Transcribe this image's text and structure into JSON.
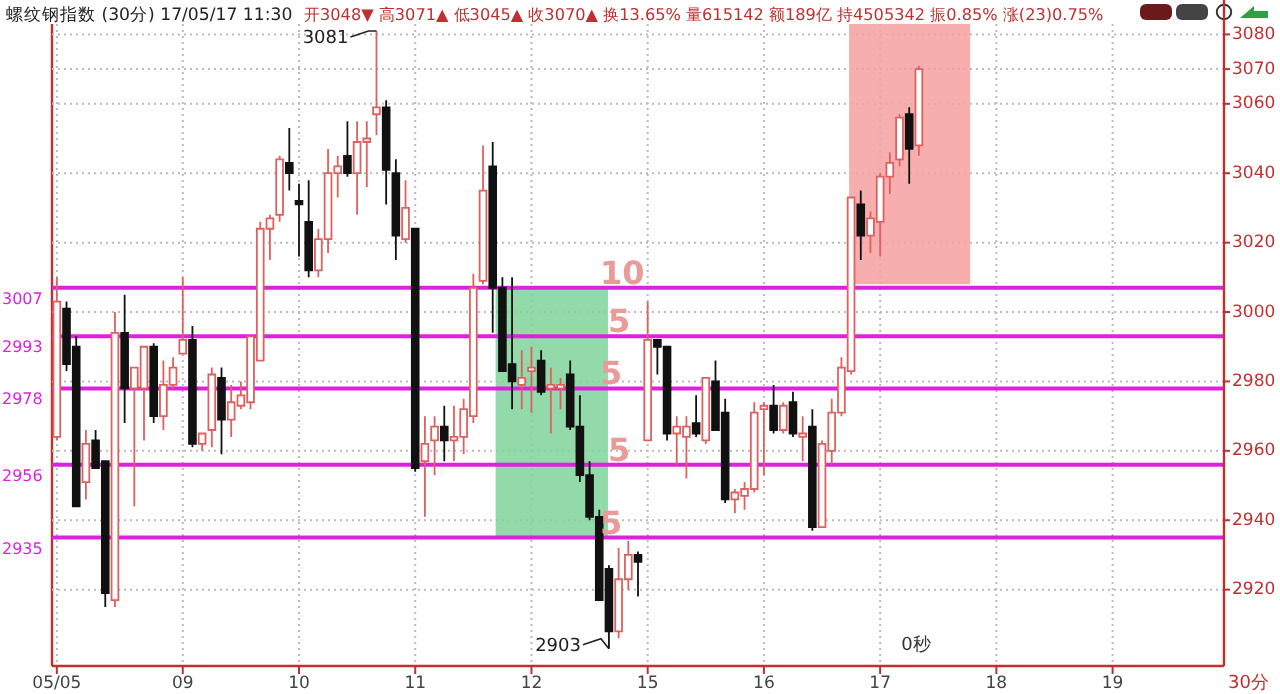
{
  "chart_data": {
    "type": "candlestick",
    "title": "螺纹钢指数 (30分) 17/05/17 11:30",
    "subtitle": "开3048▼ 高3071▲ 低3045▲ 收3070▲ 换13.65% 量615142 额189亿 持4505342 振0.85% 涨(23)0.75%",
    "categories": [
      "05/05",
      null,
      null,
      null,
      null,
      null,
      null,
      null,
      null,
      null,
      null,
      null,
      null,
      "09",
      null,
      null,
      null,
      null,
      null,
      null,
      null,
      null,
      null,
      null,
      null,
      "10",
      null,
      null,
      null,
      null,
      null,
      null,
      null,
      null,
      null,
      null,
      null,
      "11",
      null,
      null,
      null,
      null,
      null,
      null,
      null,
      null,
      null,
      null,
      null,
      "12",
      null,
      null,
      null,
      null,
      null,
      null,
      null,
      null,
      null,
      null,
      null,
      "15",
      null,
      null,
      null,
      null,
      null,
      null,
      null,
      null,
      null,
      null,
      null,
      "16",
      null,
      null,
      null,
      null,
      null,
      null,
      null,
      null,
      null,
      null,
      null,
      "17",
      null,
      null,
      null,
      null,
      null,
      null,
      null,
      null,
      null,
      null,
      null,
      "18",
      null,
      null,
      null,
      null,
      null,
      null,
      null,
      null,
      null,
      null,
      null,
      "19",
      null,
      null,
      null,
      null,
      null,
      null,
      null,
      null,
      null,
      null,
      null
    ],
    "ohlc": [
      [
        2964,
        3010,
        2963,
        3003
      ],
      [
        3001,
        3003,
        2983,
        2985
      ],
      [
        2990,
        2993,
        2944,
        2944
      ],
      [
        2951,
        2966,
        2946,
        2962
      ],
      [
        2963,
        2966,
        2955,
        2955
      ],
      [
        2957,
        2957,
        2915,
        2919
      ],
      [
        2917,
        3000,
        2915,
        2994
      ],
      [
        2994,
        3005,
        2968,
        2978
      ],
      [
        2978,
        2984,
        2944,
        2984
      ],
      [
        2978,
        2990,
        2963,
        2990
      ],
      [
        2990,
        2991,
        2968,
        2970
      ],
      [
        2970,
        2986,
        2966,
        2979
      ],
      [
        2979,
        2987,
        2978,
        2984
      ],
      [
        2988,
        3010,
        2988,
        2992
      ],
      [
        2992,
        2996,
        2961,
        2962
      ],
      [
        2962,
        2965,
        2960,
        2965
      ],
      [
        2966,
        2984,
        2961,
        2982
      ],
      [
        2981,
        2984,
        2959,
        2969
      ],
      [
        2969,
        2979,
        2964,
        2974
      ],
      [
        2973,
        2980,
        2972,
        2976
      ],
      [
        2974,
        2993,
        2972,
        2993
      ],
      [
        2986,
        3026,
        2986,
        3024
      ],
      [
        3024,
        3028,
        3015,
        3027
      ],
      [
        3028,
        3045,
        3026,
        3044
      ],
      [
        3043,
        3053,
        3035,
        3040
      ],
      [
        3032,
        3037,
        3016,
        3031
      ],
      [
        3026,
        3038,
        3010,
        3012
      ],
      [
        3012,
        3024,
        3010,
        3021
      ],
      [
        3021,
        3047,
        3017,
        3040
      ],
      [
        3040,
        3045,
        3033,
        3042
      ],
      [
        3045,
        3055,
        3039,
        3040
      ],
      [
        3040,
        3055,
        3028,
        3049
      ],
      [
        3049,
        3055,
        3036,
        3050
      ],
      [
        3057,
        3081,
        3051,
        3059
      ],
      [
        3059,
        3061,
        3031,
        3041
      ],
      [
        3040,
        3044,
        3015,
        3022
      ],
      [
        3021,
        3038,
        3020,
        3030
      ],
      [
        3024,
        3024,
        2954,
        2955
      ],
      [
        2957,
        2970,
        2941,
        2962
      ],
      [
        2963,
        2970,
        2953,
        2967
      ],
      [
        2967,
        2973,
        2957,
        2963
      ],
      [
        2963,
        2973,
        2957,
        2964
      ],
      [
        2964,
        2975,
        2959,
        2972
      ],
      [
        2970,
        3011,
        2968,
        3007
      ],
      [
        3009,
        3048,
        3008,
        3035
      ],
      [
        3042,
        3049,
        2994,
        3007
      ],
      [
        3007,
        3010,
        2983,
        2983
      ],
      [
        2985,
        3010,
        2972,
        2980
      ],
      [
        2979,
        2989,
        2972,
        2981
      ],
      [
        2983,
        2990,
        2971,
        2984
      ],
      [
        2986,
        2989,
        2976,
        2977
      ],
      [
        2978,
        2984,
        2965,
        2979
      ],
      [
        2978,
        2981,
        2972,
        2979
      ],
      [
        2982,
        2986,
        2966,
        2967
      ],
      [
        2967,
        2976,
        2951,
        2953
      ],
      [
        2953,
        2957,
        2940,
        2941
      ],
      [
        2941,
        2943,
        2917,
        2917
      ],
      [
        2926,
        2927,
        2903,
        2908
      ],
      [
        2908,
        2932,
        2906,
        2923
      ],
      [
        2923,
        2934,
        2920,
        2930
      ],
      [
        2930,
        2931,
        2918,
        2928
      ],
      [
        2963,
        3003,
        2963,
        2992
      ],
      [
        2992,
        2992,
        2982,
        2990
      ],
      [
        2990,
        2990,
        2963,
        2965
      ],
      [
        2965,
        2970,
        2956,
        2967
      ],
      [
        2964,
        2970,
        2952,
        2967
      ],
      [
        2968,
        2976,
        2964,
        2965
      ],
      [
        2963,
        2981,
        2962,
        2981
      ],
      [
        2980,
        2986,
        2966,
        2966
      ],
      [
        2971,
        2975,
        2945,
        2946
      ],
      [
        2946,
        2949,
        2942,
        2948
      ],
      [
        2947,
        2951,
        2943,
        2949
      ],
      [
        2949,
        2974,
        2948,
        2971
      ],
      [
        2972,
        2974,
        2953,
        2973
      ],
      [
        2973,
        2979,
        2965,
        2966
      ],
      [
        2966,
        2974,
        2965,
        2973
      ],
      [
        2974,
        2977,
        2964,
        2965
      ],
      [
        2964,
        2970,
        2957,
        2965
      ],
      [
        2967,
        2972,
        2937,
        2938
      ],
      [
        2938,
        2963,
        2938,
        2962
      ],
      [
        2960,
        2975,
        2956,
        2971
      ],
      [
        2971,
        2987,
        2970,
        2984
      ],
      [
        2983,
        3033,
        2982,
        3033
      ],
      [
        3031,
        3035,
        3015,
        3022
      ],
      [
        3022,
        3029,
        3017,
        3027
      ],
      [
        3026,
        3040,
        3016,
        3039
      ],
      [
        3039,
        3046,
        3034,
        3043
      ],
      [
        3044,
        3057,
        3042,
        3056
      ],
      [
        3057,
        3059,
        3037,
        3047
      ],
      [
        3048,
        3071,
        3045,
        3070
      ],
      null,
      null,
      null,
      null,
      null,
      null,
      null,
      null,
      null,
      null,
      null,
      null,
      null,
      null,
      null,
      null,
      null,
      null,
      null,
      null,
      null,
      null,
      null,
      null,
      null,
      null,
      null,
      null,
      null,
      null,
      null
    ],
    "ylim": [
      2898,
      3083
    ],
    "yticks": [
      2920,
      2940,
      2960,
      2980,
      3000,
      3020,
      3040,
      3060,
      3070,
      3080
    ],
    "grid": true,
    "ref_lines": [
      {
        "axis": "y",
        "value": 3007,
        "label": "3007",
        "color": "#dd22dd",
        "line_style": "solid"
      },
      {
        "axis": "y",
        "value": 2993,
        "label": "2993",
        "color": "#dd22dd",
        "line_style": "solid"
      },
      {
        "axis": "y",
        "value": 2978,
        "label": "2978",
        "color": "#dd22dd",
        "line_style": "solid"
      },
      {
        "axis": "y",
        "value": 2956,
        "label": "2956",
        "color": "#dd22dd",
        "line_style": "solid"
      },
      {
        "axis": "y",
        "value": 2935,
        "label": "2935",
        "color": "#dd22dd",
        "line_style": "solid"
      }
    ],
    "bands": [
      {
        "axis": "y",
        "from": 2935,
        "to": 3007,
        "color": "#7fd49a"
      },
      {
        "axis": "y",
        "from": 3008,
        "to": 3083,
        "color": "#f4a0a0"
      }
    ],
    "annotations": [
      "3081",
      "2903",
      {
        "text": "10",
        "y": 3007
      },
      {
        "text": "5",
        "y": 2993
      },
      {
        "text": "5",
        "y": 2978
      },
      {
        "text": "5",
        "y": 2956
      },
      {
        "text": "5",
        "y": 2935
      },
      "0秒",
      "30分"
    ]
  }
}
